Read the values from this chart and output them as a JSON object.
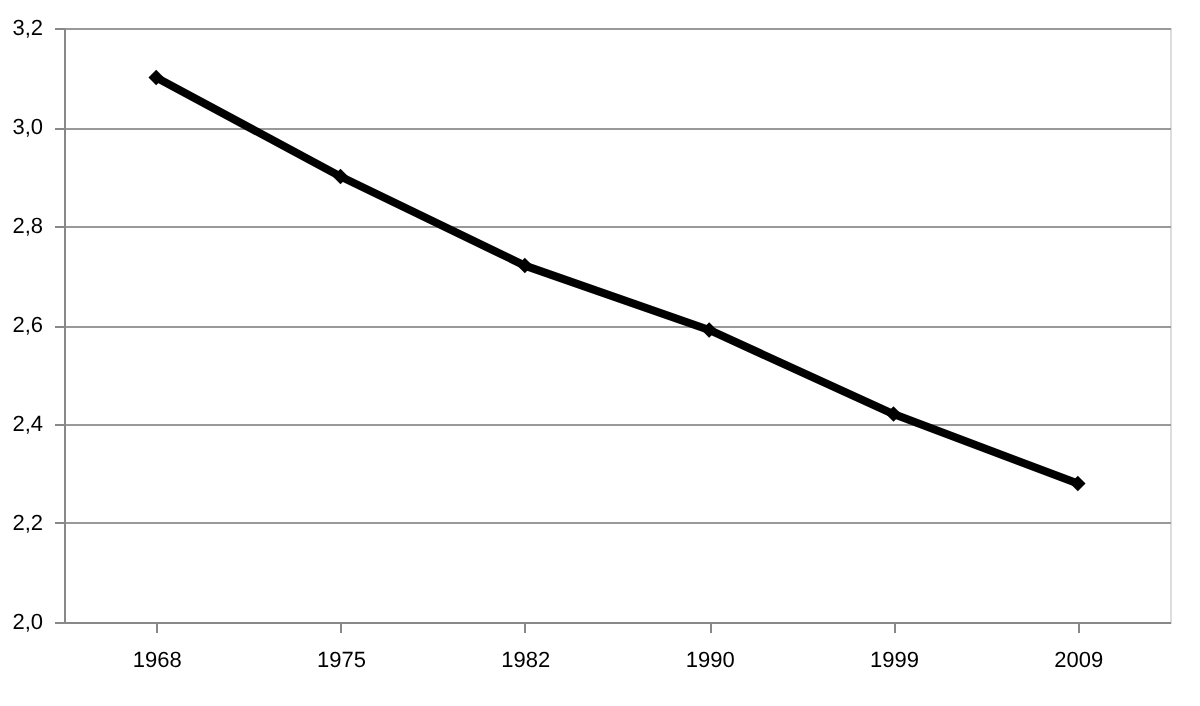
{
  "chart_data": {
    "type": "line",
    "categories": [
      "1968",
      "1975",
      "1982",
      "1990",
      "1999",
      "2009"
    ],
    "series": [
      {
        "color": "#000000",
        "values": [
          3.1,
          2.9,
          2.72,
          2.59,
          2.42,
          2.28
        ]
      }
    ],
    "ylim": [
      2.0,
      3.2
    ],
    "yticks": [
      {
        "value": 2.0,
        "label": "2,0"
      },
      {
        "value": 2.2,
        "label": "2,2"
      },
      {
        "value": 2.4,
        "label": "2,4"
      },
      {
        "value": 2.6,
        "label": "2,6"
      },
      {
        "value": 2.8,
        "label": "2,8"
      },
      {
        "value": 3.0,
        "label": "3,0"
      },
      {
        "value": 3.2,
        "label": "3,2"
      }
    ],
    "grid": "y",
    "marker": "diamond",
    "line_style": "solid"
  }
}
